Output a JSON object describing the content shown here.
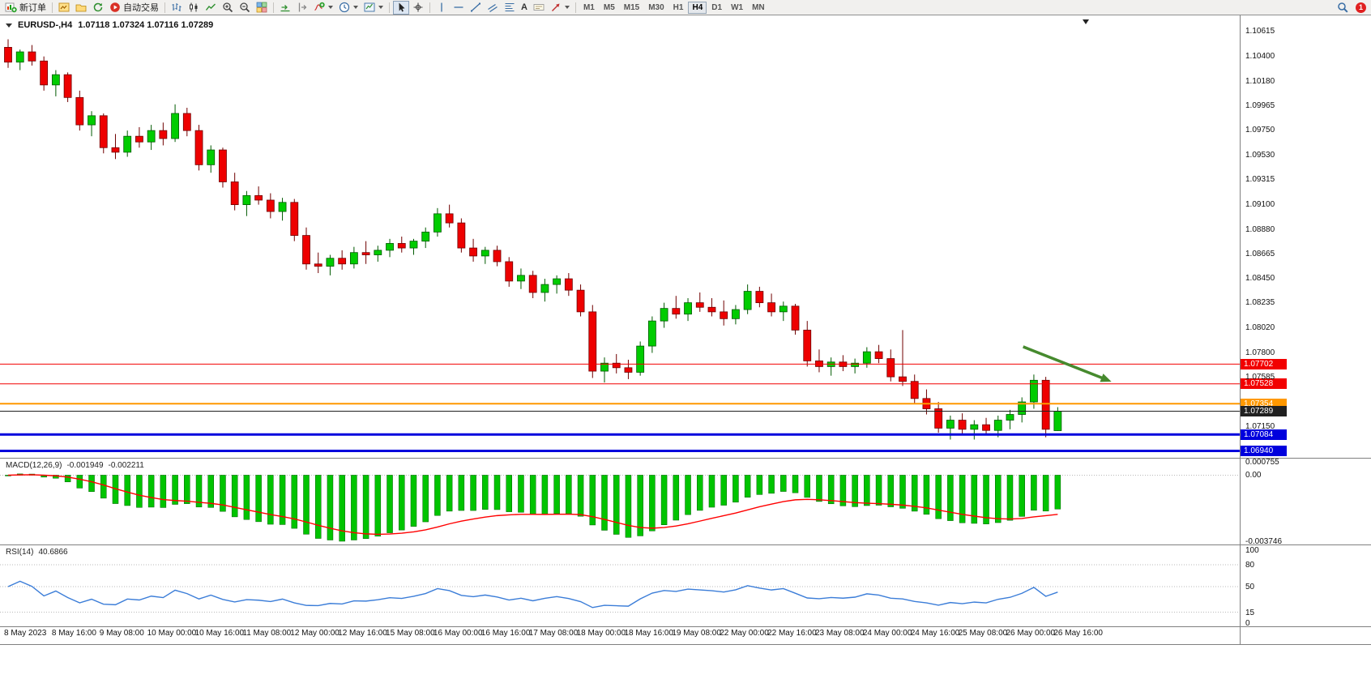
{
  "toolbar": {
    "new_order_label": "新订单",
    "autotrading_label": "自动交易",
    "timeframes": [
      "M1",
      "M5",
      "M15",
      "M30",
      "H1",
      "H4",
      "D1",
      "W1",
      "MN"
    ],
    "active_timeframe": "H4",
    "notification_count": "1"
  },
  "chart": {
    "header": {
      "symbol_period": "EURUSD-,H4",
      "ohlc_text": "1.07118 1.07324 1.07116 1.07289",
      "open": "1.07118",
      "high": "1.07324",
      "low": "1.07116",
      "close": "1.07289"
    },
    "price_axis_labels": [
      "1.10615",
      "1.10400",
      "1.10180",
      "1.09965",
      "1.09750",
      "1.09530",
      "1.09315",
      "1.09100",
      "1.08880",
      "1.08665",
      "1.08450",
      "1.08235",
      "1.08020",
      "1.07800",
      "1.07585",
      "1.07150"
    ],
    "levels": [
      {
        "label": "1.07702",
        "price": 1.07702,
        "color": "#f20000",
        "thickness": 1
      },
      {
        "label": "1.07528",
        "price": 1.07528,
        "color": "#f20000",
        "thickness": 1
      },
      {
        "label": "1.07354",
        "price": 1.07354,
        "color": "#ff9800",
        "thickness": 2
      },
      {
        "label": "1.07289",
        "price": 1.07289,
        "color": "#202020",
        "thickness": 1
      },
      {
        "label": "1.07084",
        "price": 1.07084,
        "color": "#0000dd",
        "thickness": 3
      },
      {
        "label": "1.06940",
        "price": 1.0694,
        "color": "#0000dd",
        "thickness": 3
      }
    ]
  },
  "chart_data": {
    "type": "candlestick",
    "symbol": "EURUSD-",
    "timeframe": "H4",
    "title": "EURUSD-,H4",
    "up_color": "#00cc00",
    "up_border": "#005a00",
    "down_color": "#ee0000",
    "down_border": "#700000",
    "candles": [
      [
        1.1048,
        1.1055,
        1.103,
        1.1035
      ],
      [
        1.1035,
        1.1046,
        1.1028,
        1.1044
      ],
      [
        1.1044,
        1.105,
        1.1032,
        1.1036
      ],
      [
        1.1036,
        1.104,
        1.101,
        1.1015
      ],
      [
        1.1015,
        1.1028,
        1.1005,
        1.1024
      ],
      [
        1.1024,
        1.1026,
        1.1,
        1.1004
      ],
      [
        1.1004,
        1.101,
        1.0975,
        1.098
      ],
      [
        1.098,
        1.0992,
        1.097,
        1.0988
      ],
      [
        1.0988,
        1.099,
        1.0955,
        1.096
      ],
      [
        1.096,
        1.0972,
        1.095,
        1.0956
      ],
      [
        1.0956,
        1.0975,
        1.0952,
        1.097
      ],
      [
        1.097,
        1.0978,
        1.096,
        1.0965
      ],
      [
        1.0965,
        1.098,
        1.0958,
        1.0975
      ],
      [
        1.0975,
        1.0982,
        1.0962,
        1.0968
      ],
      [
        1.0968,
        1.0998,
        1.0965,
        1.099
      ],
      [
        1.099,
        1.0995,
        1.097,
        1.0975
      ],
      [
        1.0975,
        1.098,
        1.094,
        1.0945
      ],
      [
        1.0945,
        1.0962,
        1.0938,
        1.0958
      ],
      [
        1.0958,
        1.096,
        1.0925,
        1.093
      ],
      [
        1.093,
        1.0938,
        1.0905,
        1.091
      ],
      [
        1.091,
        1.0922,
        1.09,
        1.0918
      ],
      [
        1.0918,
        1.0926,
        1.091,
        1.0914
      ],
      [
        1.0914,
        1.092,
        1.0898,
        1.0904
      ],
      [
        1.0904,
        1.0916,
        1.0896,
        1.0912
      ],
      [
        1.0912,
        1.0915,
        1.0878,
        1.0883
      ],
      [
        1.0883,
        1.089,
        1.0853,
        1.0858
      ],
      [
        1.0858,
        1.0868,
        1.085,
        1.0856
      ],
      [
        1.0856,
        1.0866,
        1.0848,
        1.0863
      ],
      [
        1.0863,
        1.087,
        1.0853,
        1.0858
      ],
      [
        1.0858,
        1.0873,
        1.0854,
        1.0868
      ],
      [
        1.0868,
        1.0878,
        1.0858,
        1.0866
      ],
      [
        1.0866,
        1.0874,
        1.086,
        1.087
      ],
      [
        1.087,
        1.088,
        1.0864,
        1.0876
      ],
      [
        1.0876,
        1.0882,
        1.0868,
        1.0872
      ],
      [
        1.0872,
        1.088,
        1.0866,
        1.0878
      ],
      [
        1.0878,
        1.089,
        1.0872,
        1.0886
      ],
      [
        1.0886,
        1.0907,
        1.0882,
        1.0902
      ],
      [
        1.0902,
        1.091,
        1.089,
        1.0894
      ],
      [
        1.0894,
        1.0898,
        1.0868,
        1.0872
      ],
      [
        1.0872,
        1.088,
        1.086,
        1.0865
      ],
      [
        1.0865,
        1.0873,
        1.0858,
        1.087
      ],
      [
        1.087,
        1.0874,
        1.0856,
        1.086
      ],
      [
        1.086,
        1.0864,
        1.0838,
        1.0843
      ],
      [
        1.0843,
        1.0854,
        1.0836,
        1.0848
      ],
      [
        1.0848,
        1.0852,
        1.0828,
        1.0833
      ],
      [
        1.0833,
        1.0845,
        1.0825,
        1.084
      ],
      [
        1.084,
        1.0848,
        1.0832,
        1.0845
      ],
      [
        1.0845,
        1.085,
        1.083,
        1.0835
      ],
      [
        1.0835,
        1.084,
        1.0812,
        1.0816
      ],
      [
        1.0816,
        1.0822,
        1.0758,
        1.0764
      ],
      [
        1.0764,
        1.0776,
        1.0754,
        1.0771
      ],
      [
        1.0771,
        1.0779,
        1.0762,
        1.0767
      ],
      [
        1.0767,
        1.0774,
        1.0757,
        1.0763
      ],
      [
        1.0763,
        1.079,
        1.076,
        1.0786
      ],
      [
        1.0786,
        1.0812,
        1.078,
        1.0808
      ],
      [
        1.0808,
        1.0824,
        1.0802,
        1.0819
      ],
      [
        1.0819,
        1.083,
        1.081,
        1.0814
      ],
      [
        1.0814,
        1.0828,
        1.0808,
        1.0824
      ],
      [
        1.0824,
        1.0833,
        1.0816,
        1.082
      ],
      [
        1.082,
        1.0828,
        1.0812,
        1.0816
      ],
      [
        1.0816,
        1.0826,
        1.0804,
        1.081
      ],
      [
        1.081,
        1.0822,
        1.0805,
        1.0818
      ],
      [
        1.0818,
        1.084,
        1.0814,
        1.0834
      ],
      [
        1.0834,
        1.0838,
        1.082,
        1.0824
      ],
      [
        1.0824,
        1.0832,
        1.0812,
        1.0816
      ],
      [
        1.0816,
        1.0825,
        1.0808,
        1.0821
      ],
      [
        1.0821,
        1.0823,
        1.0796,
        1.08
      ],
      [
        1.08,
        1.0808,
        1.0768,
        1.0773
      ],
      [
        1.0773,
        1.0783,
        1.0763,
        1.0768
      ],
      [
        1.0768,
        1.0776,
        1.076,
        1.0772
      ],
      [
        1.0772,
        1.0778,
        1.0764,
        1.0768
      ],
      [
        1.0768,
        1.0775,
        1.0762,
        1.0771
      ],
      [
        1.0771,
        1.0785,
        1.0767,
        1.0781
      ],
      [
        1.0781,
        1.0787,
        1.0771,
        1.0775
      ],
      [
        1.0775,
        1.0783,
        1.0755,
        1.0759
      ],
      [
        1.0759,
        1.08,
        1.0751,
        1.0755
      ],
      [
        1.0755,
        1.0761,
        1.0736,
        1.074
      ],
      [
        1.074,
        1.0748,
        1.0726,
        1.0731
      ],
      [
        1.0731,
        1.0737,
        1.071,
        1.0714
      ],
      [
        1.0714,
        1.0725,
        1.0704,
        1.0721
      ],
      [
        1.0721,
        1.0727,
        1.0709,
        1.0713
      ],
      [
        1.0713,
        1.0721,
        1.0704,
        1.0717
      ],
      [
        1.0717,
        1.0723,
        1.0708,
        1.0712
      ],
      [
        1.0712,
        1.0725,
        1.0706,
        1.0721
      ],
      [
        1.0721,
        1.073,
        1.0713,
        1.0726
      ],
      [
        1.0726,
        1.0741,
        1.0719,
        1.0737
      ],
      [
        1.0737,
        1.0761,
        1.0731,
        1.0756
      ],
      [
        1.0756,
        1.0759,
        1.0706,
        1.0713
      ],
      [
        1.07118,
        1.07324,
        1.07116,
        1.07289
      ]
    ],
    "time_labels": [
      "8 May 2023",
      "8 May 16:00",
      "9 May 08:00",
      "10 May 00:00",
      "10 May 16:00",
      "11 May 08:00",
      "12 May 00:00",
      "12 May 16:00",
      "15 May 08:00",
      "16 May 00:00",
      "16 May 16:00",
      "17 May 08:00",
      "18 May 00:00",
      "18 May 16:00",
      "19 May 08:00",
      "22 May 00:00",
      "22 May 16:00",
      "23 May 08:00",
      "24 May 00:00",
      "24 May 16:00",
      "25 May 08:00",
      "26 May 00:00",
      "26 May 16:00"
    ],
    "label_every": 4,
    "indicators": {
      "macd": {
        "label": "MACD(12,26,9)",
        "value": "-0.001949",
        "signal_value": "-0.002211",
        "params": [
          12,
          26,
          9
        ],
        "axis_max": "0.000755",
        "axis_zero": "0.00",
        "axis_min": "-0.003746",
        "histogram_color": "#00c400",
        "signal_color": "#ff0000"
      },
      "rsi": {
        "label": "RSI(14)",
        "value": "40.6866",
        "period": 14,
        "axis_labels": [
          100,
          80,
          50,
          15,
          0
        ],
        "level_lines": [
          80,
          50,
          15
        ],
        "line_color": "#3b7dd8"
      }
    },
    "annotations": [
      {
        "type": "arrow",
        "from_bar": 85.1,
        "from_price": 1.07854,
        "to_bar": 92.5,
        "to_price": 1.07548,
        "color": "#468a2e"
      }
    ]
  }
}
